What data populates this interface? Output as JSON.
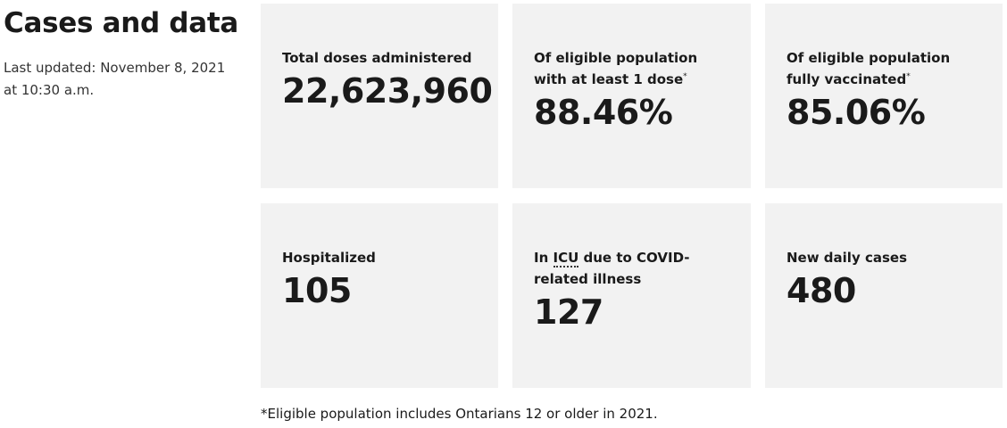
{
  "header": {
    "title": "Cases and data",
    "last_updated": "Last updated: November 8, 2021 at 10:30 a.m."
  },
  "cards": [
    {
      "label": "Total doses administered",
      "value": "22,623,960"
    },
    {
      "label": "Of eligible population with at least 1 dose",
      "marker": "*",
      "value": "88.46%"
    },
    {
      "label": "Of eligible population fully vaccinated",
      "marker": "*",
      "value": "85.06%"
    },
    {
      "label": "Hospitalized",
      "value": "105"
    },
    {
      "label_prefix": "In",
      "label_abbr": "ICU",
      "label_suffix": "due to COVID-related illness",
      "value": "127"
    },
    {
      "label": "New daily cases",
      "value": "480"
    }
  ],
  "footnote": "*Eligible population includes Ontarians 12 or older in 2021."
}
